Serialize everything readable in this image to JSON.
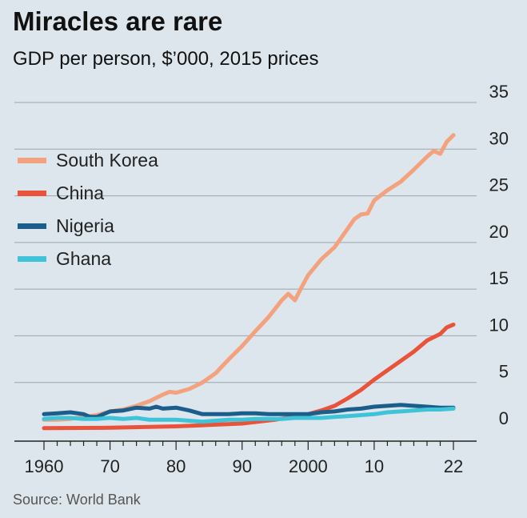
{
  "header": {
    "title": "Miracles are rare",
    "subtitle": "GDP per person, $’000, 2015 prices"
  },
  "footer": {
    "source": "Source: World Bank"
  },
  "legend": [
    {
      "label": "South Korea",
      "color": "#f4a17d"
    },
    {
      "label": "China",
      "color": "#e8533a"
    },
    {
      "label": "Nigeria",
      "color": "#1b5e8c"
    },
    {
      "label": "Ghana",
      "color": "#3ec3d8"
    }
  ],
  "chart_data": {
    "type": "line",
    "title": "Miracles are rare",
    "subtitle": "GDP per person, $’000, 2015 prices",
    "xlim": [
      1960,
      2022
    ],
    "ylim": [
      0,
      35
    ],
    "x_ticks": [
      1960,
      1970,
      1980,
      1990,
      2000,
      2010,
      2022
    ],
    "x_tick_labels": [
      "1960",
      "70",
      "80",
      "90",
      "2000",
      "10",
      "22"
    ],
    "y_ticks": [
      0,
      5,
      10,
      15,
      20,
      25,
      30,
      35
    ],
    "y_tick_labels": [
      "0",
      "5",
      "10",
      "15",
      "20",
      "25",
      "30",
      "35"
    ],
    "y_axis_side": "right",
    "grid": "horizontal",
    "legend_position": "top-left",
    "series": [
      {
        "name": "South Korea",
        "color": "#f4a17d",
        "points": [
          [
            1960,
            1.0
          ],
          [
            1962,
            1.0
          ],
          [
            1964,
            1.1
          ],
          [
            1966,
            1.3
          ],
          [
            1968,
            1.5
          ],
          [
            1970,
            1.9
          ],
          [
            1972,
            2.1
          ],
          [
            1974,
            2.5
          ],
          [
            1976,
            3.0
          ],
          [
            1978,
            3.7
          ],
          [
            1979,
            4.0
          ],
          [
            1980,
            3.9
          ],
          [
            1982,
            4.3
          ],
          [
            1984,
            5.0
          ],
          [
            1986,
            6.0
          ],
          [
            1988,
            7.5
          ],
          [
            1990,
            8.9
          ],
          [
            1992,
            10.5
          ],
          [
            1994,
            12.0
          ],
          [
            1996,
            13.8
          ],
          [
            1997,
            14.5
          ],
          [
            1998,
            13.8
          ],
          [
            1999,
            15.2
          ],
          [
            2000,
            16.5
          ],
          [
            2002,
            18.2
          ],
          [
            2004,
            19.5
          ],
          [
            2006,
            21.5
          ],
          [
            2007,
            22.5
          ],
          [
            2008,
            23.0
          ],
          [
            2009,
            23.1
          ],
          [
            2010,
            24.5
          ],
          [
            2012,
            25.6
          ],
          [
            2014,
            26.5
          ],
          [
            2016,
            27.8
          ],
          [
            2018,
            29.2
          ],
          [
            2019,
            29.8
          ],
          [
            2020,
            29.5
          ],
          [
            2021,
            30.8
          ],
          [
            2022,
            31.5
          ]
        ]
      },
      {
        "name": "China",
        "color": "#e8533a",
        "points": [
          [
            1960,
            0.1
          ],
          [
            1970,
            0.15
          ],
          [
            1980,
            0.3
          ],
          [
            1985,
            0.45
          ],
          [
            1990,
            0.6
          ],
          [
            1995,
            1.0
          ],
          [
            2000,
            1.6
          ],
          [
            2002,
            2.0
          ],
          [
            2004,
            2.5
          ],
          [
            2006,
            3.3
          ],
          [
            2008,
            4.2
          ],
          [
            2010,
            5.3
          ],
          [
            2012,
            6.3
          ],
          [
            2014,
            7.3
          ],
          [
            2016,
            8.3
          ],
          [
            2018,
            9.5
          ],
          [
            2020,
            10.2
          ],
          [
            2021,
            10.9
          ],
          [
            2022,
            11.2
          ]
        ]
      },
      {
        "name": "Nigeria",
        "color": "#1b5e8c",
        "points": [
          [
            1960,
            1.6
          ],
          [
            1962,
            1.7
          ],
          [
            1964,
            1.8
          ],
          [
            1966,
            1.6
          ],
          [
            1967,
            1.3
          ],
          [
            1968,
            1.3
          ],
          [
            1970,
            1.9
          ],
          [
            1972,
            2.0
          ],
          [
            1974,
            2.3
          ],
          [
            1976,
            2.2
          ],
          [
            1977,
            2.4
          ],
          [
            1978,
            2.2
          ],
          [
            1980,
            2.3
          ],
          [
            1982,
            2.0
          ],
          [
            1984,
            1.6
          ],
          [
            1986,
            1.6
          ],
          [
            1988,
            1.6
          ],
          [
            1990,
            1.7
          ],
          [
            1992,
            1.7
          ],
          [
            1994,
            1.6
          ],
          [
            1996,
            1.6
          ],
          [
            1998,
            1.6
          ],
          [
            2000,
            1.6
          ],
          [
            2002,
            1.8
          ],
          [
            2004,
            1.9
          ],
          [
            2006,
            2.1
          ],
          [
            2008,
            2.2
          ],
          [
            2010,
            2.4
          ],
          [
            2012,
            2.5
          ],
          [
            2014,
            2.6
          ],
          [
            2016,
            2.5
          ],
          [
            2018,
            2.4
          ],
          [
            2020,
            2.3
          ],
          [
            2022,
            2.3
          ]
        ]
      },
      {
        "name": "Ghana",
        "color": "#3ec3d8",
        "points": [
          [
            1960,
            1.1
          ],
          [
            1962,
            1.2
          ],
          [
            1964,
            1.2
          ],
          [
            1966,
            1.1
          ],
          [
            1968,
            1.1
          ],
          [
            1970,
            1.2
          ],
          [
            1972,
            1.1
          ],
          [
            1974,
            1.2
          ],
          [
            1976,
            1.0
          ],
          [
            1978,
            1.0
          ],
          [
            1980,
            1.0
          ],
          [
            1982,
            0.9
          ],
          [
            1984,
            0.8
          ],
          [
            1986,
            0.9
          ],
          [
            1988,
            1.0
          ],
          [
            1990,
            1.0
          ],
          [
            1992,
            1.1
          ],
          [
            1994,
            1.1
          ],
          [
            1996,
            1.1
          ],
          [
            1998,
            1.2
          ],
          [
            2000,
            1.2
          ],
          [
            2002,
            1.2
          ],
          [
            2004,
            1.3
          ],
          [
            2006,
            1.4
          ],
          [
            2008,
            1.5
          ],
          [
            2010,
            1.6
          ],
          [
            2012,
            1.8
          ],
          [
            2014,
            1.9
          ],
          [
            2016,
            2.0
          ],
          [
            2018,
            2.1
          ],
          [
            2020,
            2.1
          ],
          [
            2022,
            2.2
          ]
        ]
      }
    ]
  }
}
